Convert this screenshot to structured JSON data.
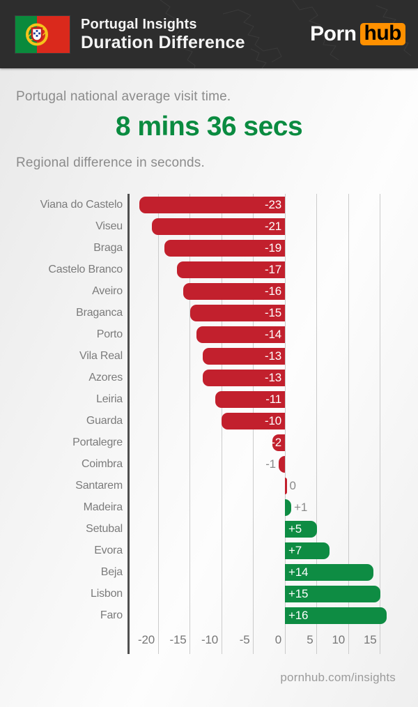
{
  "header": {
    "title_line1": "Portugal Insights",
    "title_line2": "Duration Difference",
    "logo_porn": "Porn",
    "logo_hub": "hub"
  },
  "intro": {
    "line1": "Portugal national average visit time.",
    "stat": "8 mins 36 secs",
    "line2": "Regional difference in seconds."
  },
  "chart_data": {
    "type": "bar",
    "orientation": "horizontal",
    "title": "Regional difference in seconds.",
    "categories": [
      "Viana do Castelo",
      "Viseu",
      "Braga",
      "Castelo Branco",
      "Aveiro",
      "Braganca",
      "Porto",
      "Vila Real",
      "Azores",
      "Leiria",
      "Guarda",
      "Portalegre",
      "Coimbra",
      "Santarem",
      "Madeira",
      "Setubal",
      "Evora",
      "Beja",
      "Lisbon",
      "Faro"
    ],
    "values": [
      -23,
      -21,
      -19,
      -17,
      -16,
      -15,
      -14,
      -13,
      -13,
      -11,
      -10,
      -2,
      -1,
      0,
      1,
      5,
      7,
      14,
      15,
      16
    ],
    "value_labels": [
      "-23",
      "-21",
      "-19",
      "-17",
      "-16",
      "-15",
      "-14",
      "-13",
      "-13",
      "-11",
      "-10",
      "-2",
      "-1",
      "0",
      "+1",
      "+5",
      "+7",
      "+14",
      "+15",
      "+16"
    ],
    "xticks": [
      -20,
      -15,
      -10,
      -5,
      0,
      5,
      10,
      15
    ],
    "xtick_labels": [
      "-20",
      "-15",
      "-10",
      "-5",
      "0",
      "5",
      "10",
      "15"
    ],
    "xlim": [
      -24.7,
      18.5
    ],
    "grid": true,
    "negative_color": "#c2202d",
    "positive_color": "#0e8c43"
  },
  "colors": {
    "header_bg": "#2d2d2d",
    "accent_green": "#0a8b40",
    "logo_orange": "#ff9000",
    "gridline": "#cbcbcb",
    "axis_line": "#4f4f4f"
  },
  "footer": {
    "link": "pornhub.com/insights"
  }
}
